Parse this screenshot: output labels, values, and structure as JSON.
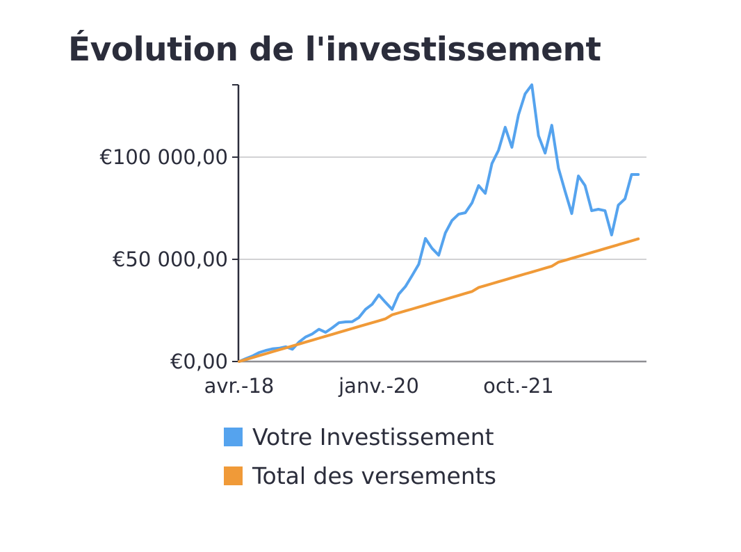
{
  "chart_data": {
    "type": "line",
    "title": "Évolution de l'investissement",
    "xlabel": "",
    "ylabel": "",
    "x_start": "avr.-18",
    "x_unit": "month",
    "x_ticks": [
      {
        "index": 0,
        "label": "avr.-18"
      },
      {
        "index": 21,
        "label": "janv.-20"
      },
      {
        "index": 42,
        "label": "oct.-21"
      }
    ],
    "y_ticks": [
      {
        "value": 0,
        "label": "€0,00"
      },
      {
        "value": 50000,
        "label": "€50 000,00"
      },
      {
        "value": 100000,
        "label": "€100 000,00"
      }
    ],
    "ylim": [
      0,
      135400
    ],
    "xlim": [
      0,
      61
    ],
    "grid": true,
    "legend_position": "bottom",
    "series": [
      {
        "name": "Votre Investissement",
        "color": "#55a3ee",
        "values": [
          0,
          1400,
          2700,
          4400,
          5400,
          6200,
          6500,
          7200,
          6000,
          9500,
          12000,
          13500,
          15800,
          14300,
          16500,
          19000,
          19400,
          19500,
          21500,
          25500,
          28000,
          32600,
          29000,
          25500,
          33000,
          36700,
          42000,
          47600,
          60200,
          55400,
          52000,
          62900,
          69000,
          72100,
          72800,
          77600,
          86100,
          82300,
          96900,
          103400,
          114600,
          104800,
          120700,
          131000,
          135400,
          110500,
          102000,
          115600,
          94600,
          83300,
          72400,
          90800,
          86100,
          73800,
          74500,
          73800,
          61900,
          76500,
          79600,
          91500,
          91500
        ]
      },
      {
        "name": "Total des versements",
        "color": "#f09a38",
        "values": [
          0,
          950,
          1900,
          2850,
          3800,
          4750,
          5700,
          6650,
          7600,
          8550,
          9500,
          10450,
          11400,
          12350,
          13300,
          14250,
          15200,
          16150,
          17100,
          18050,
          19000,
          19950,
          20900,
          22850,
          23800,
          24750,
          25700,
          26650,
          27600,
          28550,
          29500,
          30450,
          31400,
          32350,
          33300,
          34250,
          36200,
          37150,
          38100,
          39050,
          40000,
          40950,
          41900,
          42850,
          43800,
          44750,
          45700,
          46650,
          48600,
          49550,
          50500,
          51450,
          52400,
          53350,
          54300,
          55250,
          56200,
          57150,
          58100,
          59050,
          60000
        ]
      }
    ]
  }
}
